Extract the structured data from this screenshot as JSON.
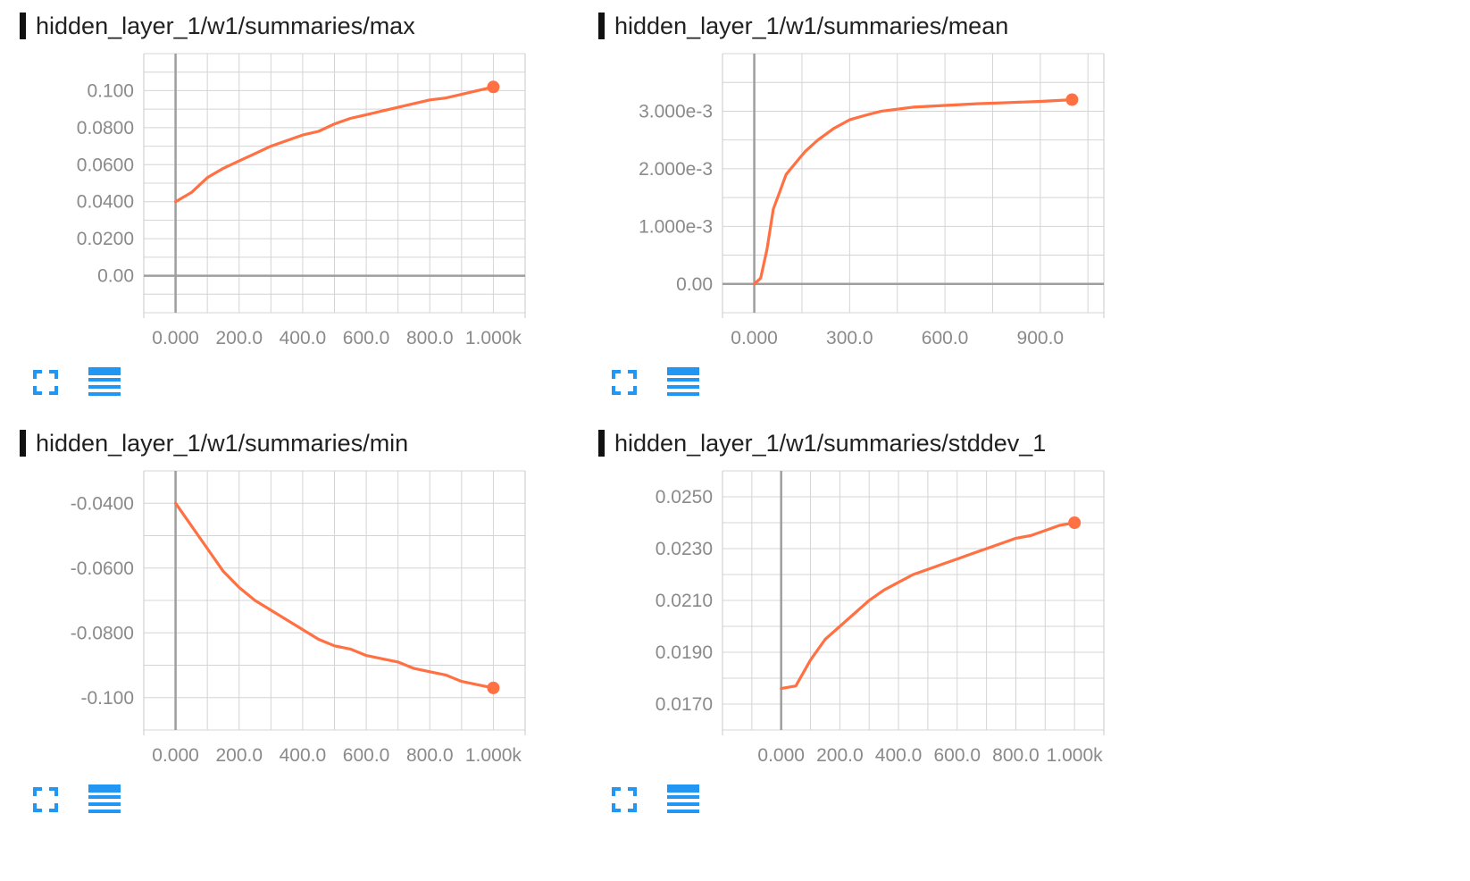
{
  "accent_color": "#ff7043",
  "icon_color": "#2196f3",
  "charts": [
    {
      "title": "hidden_layer_1/w1/summaries/max",
      "fullscreen_icon": "fullscreen-icon",
      "data_table_icon": "data-table-icon",
      "chart_data": {
        "type": "line",
        "title": "hidden_layer_1/w1/summaries/max",
        "xlabel": "",
        "ylabel": "",
        "xlim": [
          -100,
          1100
        ],
        "ylim": [
          -0.02,
          0.12
        ],
        "x_ticks": [
          0,
          200,
          400,
          600,
          800,
          1000
        ],
        "x_tick_labels": [
          "0.000",
          "200.0",
          "400.0",
          "600.0",
          "800.0",
          "1.000k"
        ],
        "y_ticks": [
          0.0,
          0.02,
          0.04,
          0.06,
          0.08,
          0.1
        ],
        "y_tick_labels": [
          "0.00",
          "0.0200",
          "0.0400",
          "0.0600",
          "0.0800",
          "0.100"
        ],
        "grid": true,
        "series": [
          {
            "color": "#ff7043",
            "x": [
              0,
              50,
              100,
              150,
              200,
              250,
              300,
              350,
              400,
              450,
              500,
              550,
              600,
              650,
              700,
              750,
              800,
              850,
              900,
              950,
              1000
            ],
            "y": [
              0.04,
              0.045,
              0.053,
              0.058,
              0.062,
              0.066,
              0.07,
              0.073,
              0.076,
              0.078,
              0.082,
              0.085,
              0.087,
              0.089,
              0.091,
              0.093,
              0.095,
              0.096,
              0.098,
              0.1,
              0.102
            ]
          }
        ]
      }
    },
    {
      "title": "hidden_layer_1/w1/summaries/mean",
      "fullscreen_icon": "fullscreen-icon",
      "data_table_icon": "data-table-icon",
      "chart_data": {
        "type": "line",
        "title": "hidden_layer_1/w1/summaries/mean",
        "xlabel": "",
        "ylabel": "",
        "xlim": [
          -100,
          1100
        ],
        "ylim": [
          -0.0005,
          0.004
        ],
        "x_ticks": [
          0,
          300,
          600,
          900
        ],
        "x_tick_labels": [
          "0.000",
          "300.0",
          "600.0",
          "900.0"
        ],
        "y_ticks": [
          0.0,
          0.001,
          0.002,
          0.003
        ],
        "y_tick_labels": [
          "0.00",
          "1.000e-3",
          "2.000e-3",
          "3.000e-3"
        ],
        "grid": true,
        "series": [
          {
            "color": "#ff7043",
            "x": [
              0,
              20,
              40,
              60,
              80,
              100,
              130,
              160,
              200,
              250,
              300,
              350,
              400,
              500,
              600,
              700,
              800,
              900,
              1000
            ],
            "y": [
              0.0,
              0.0001,
              0.0006,
              0.0013,
              0.0016,
              0.0019,
              0.0021,
              0.0023,
              0.0025,
              0.0027,
              0.00285,
              0.00293,
              0.003,
              0.00307,
              0.0031,
              0.00313,
              0.00315,
              0.00317,
              0.0032
            ]
          }
        ]
      }
    },
    {
      "title": "hidden_layer_1/w1/summaries/min",
      "fullscreen_icon": "fullscreen-icon",
      "data_table_icon": "data-table-icon",
      "chart_data": {
        "type": "line",
        "title": "hidden_layer_1/w1/summaries/min",
        "xlabel": "",
        "ylabel": "",
        "xlim": [
          -100,
          1100
        ],
        "ylim": [
          -0.11,
          -0.03
        ],
        "x_ticks": [
          0,
          200,
          400,
          600,
          800,
          1000
        ],
        "x_tick_labels": [
          "0.000",
          "200.0",
          "400.0",
          "600.0",
          "800.0",
          "1.000k"
        ],
        "y_ticks": [
          -0.1,
          -0.08,
          -0.06,
          -0.04
        ],
        "y_tick_labels": [
          "-0.100",
          "-0.0800",
          "-0.0600",
          "-0.0400"
        ],
        "grid": true,
        "series": [
          {
            "color": "#ff7043",
            "x": [
              0,
              50,
              100,
              150,
              200,
              250,
              300,
              350,
              400,
              450,
              500,
              550,
              600,
              650,
              700,
              750,
              800,
              850,
              900,
              950,
              1000
            ],
            "y": [
              -0.04,
              -0.047,
              -0.054,
              -0.061,
              -0.066,
              -0.07,
              -0.073,
              -0.076,
              -0.079,
              -0.082,
              -0.084,
              -0.085,
              -0.087,
              -0.088,
              -0.089,
              -0.091,
              -0.092,
              -0.093,
              -0.095,
              -0.096,
              -0.097
            ]
          }
        ]
      }
    },
    {
      "title": "hidden_layer_1/w1/summaries/stddev_1",
      "fullscreen_icon": "fullscreen-icon",
      "data_table_icon": "data-table-icon",
      "chart_data": {
        "type": "line",
        "title": "hidden_layer_1/w1/summaries/stddev_1",
        "xlabel": "",
        "ylabel": "",
        "xlim": [
          -200,
          1100
        ],
        "ylim": [
          0.016,
          0.026
        ],
        "x_ticks": [
          0,
          200,
          400,
          600,
          800,
          1000
        ],
        "x_tick_labels": [
          "0.000",
          "200.0",
          "400.0",
          "600.0",
          "800.0",
          "1.000k"
        ],
        "y_ticks": [
          0.017,
          0.019,
          0.021,
          0.023,
          0.025
        ],
        "y_tick_labels": [
          "0.0170",
          "0.0190",
          "0.0210",
          "0.0230",
          "0.0250"
        ],
        "grid": true,
        "series": [
          {
            "color": "#ff7043",
            "x": [
              0,
              50,
              100,
              150,
              200,
              250,
              300,
              350,
              400,
              450,
              500,
              550,
              600,
              650,
              700,
              750,
              800,
              850,
              900,
              950,
              1000
            ],
            "y": [
              0.0176,
              0.0177,
              0.0187,
              0.0195,
              0.02,
              0.0205,
              0.021,
              0.0214,
              0.0217,
              0.022,
              0.0222,
              0.0224,
              0.0226,
              0.0228,
              0.023,
              0.0232,
              0.0234,
              0.0235,
              0.0237,
              0.0239,
              0.024
            ]
          }
        ]
      }
    }
  ]
}
